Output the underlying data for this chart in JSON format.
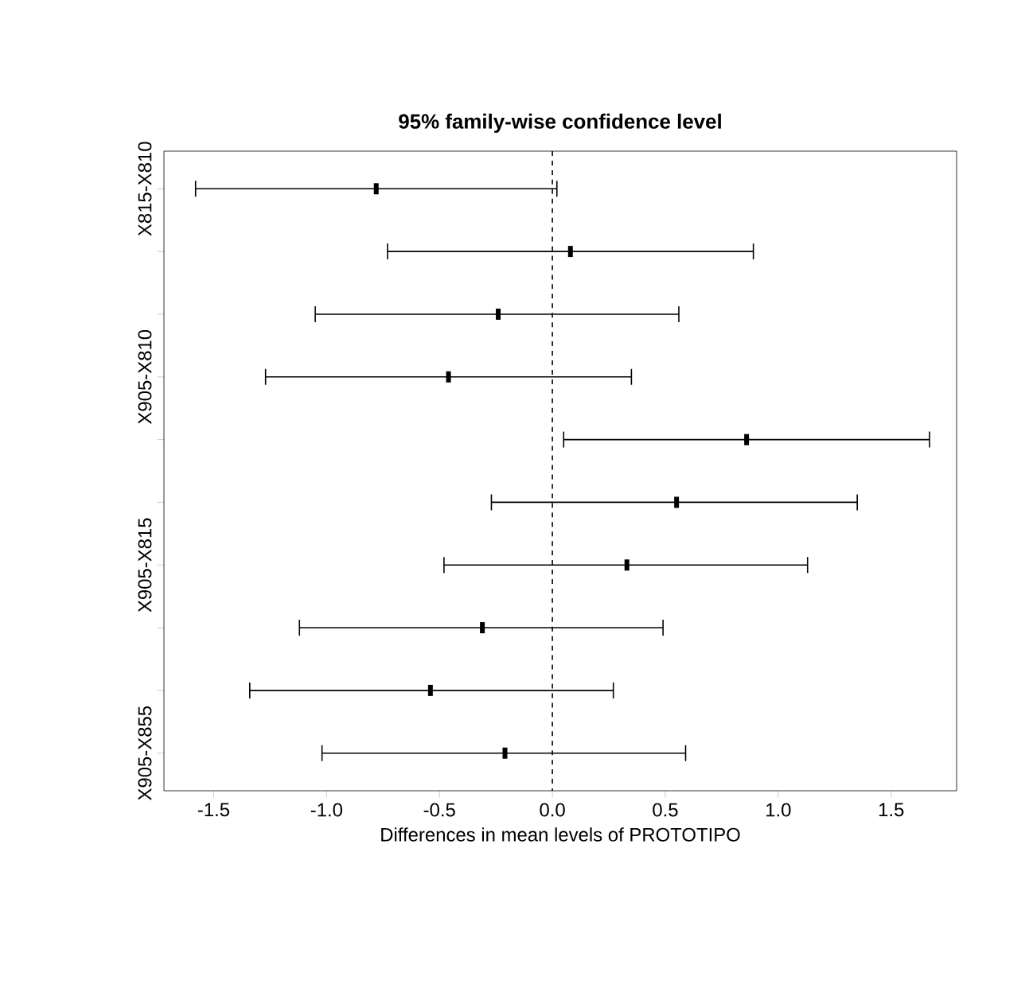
{
  "chart_data": {
    "type": "scatter",
    "orientation": "horizontal",
    "title": "95% family-wise confidence level",
    "xlabel": "Differences in mean levels of PROTOTIPO",
    "categories": [
      "X815-X810",
      null,
      null,
      "X905-X810",
      null,
      null,
      "X905-X815",
      null,
      null,
      "X905-X855"
    ],
    "values": [
      -0.78,
      0.08,
      -0.24,
      -0.46,
      0.86,
      0.55,
      0.33,
      -0.31,
      -0.54,
      -0.21
    ],
    "errors": [
      [
        -1.58,
        0.02
      ],
      [
        -0.73,
        0.89
      ],
      [
        -1.05,
        0.56
      ],
      [
        -1.27,
        0.35
      ],
      [
        0.05,
        1.67
      ],
      [
        -0.27,
        1.35
      ],
      [
        -0.48,
        1.13
      ],
      [
        -1.12,
        0.49
      ],
      [
        -1.34,
        0.27
      ],
      [
        -1.02,
        0.59
      ]
    ],
    "color": "#000000",
    "xlim": [
      -1.72,
      1.79
    ],
    "xticks": [
      -1.5,
      {
        "value": -1,
        "label": "-1.0"
      },
      -0.5,
      {
        "value": 0,
        "label": "0.0"
      },
      0.5,
      {
        "value": 1,
        "label": "1.0"
      },
      1.5
    ],
    "ref_lines": [
      {
        "axis": "x",
        "value": 0,
        "line_style": "dashed"
      }
    ]
  }
}
